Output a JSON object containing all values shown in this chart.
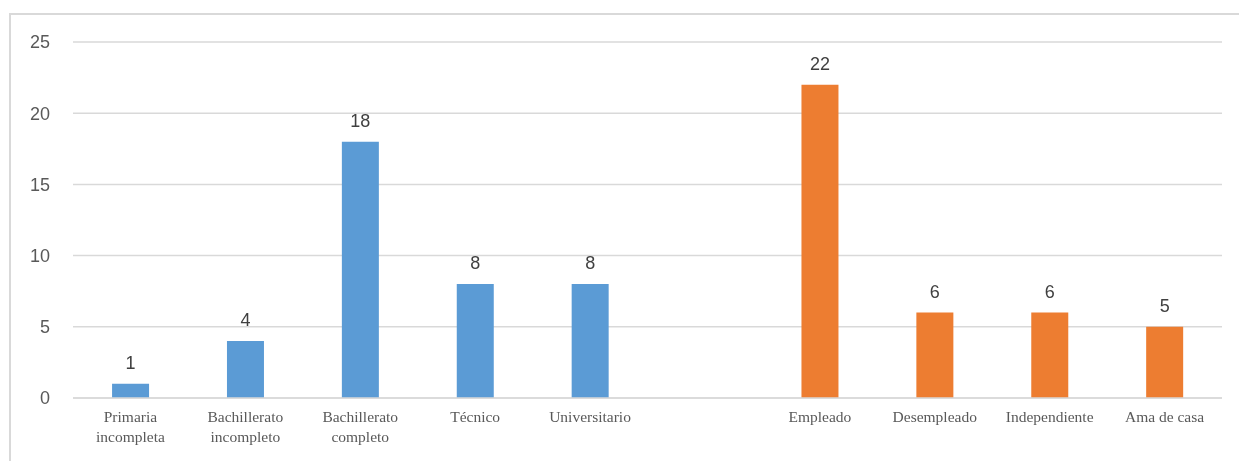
{
  "chart_data": {
    "type": "bar",
    "categories": [
      "Primaria incompleta",
      "Bachillerato incompleto",
      "Bachillerato completo",
      "Técnico",
      "Universitario",
      null,
      "Empleado",
      "Desempleado",
      "Independiente",
      "Ama de casa"
    ],
    "values": [
      1,
      4,
      18,
      8,
      8,
      null,
      22,
      6,
      6,
      5
    ],
    "colors": [
      "#5b9bd5",
      "#5b9bd5",
      "#5b9bd5",
      "#5b9bd5",
      "#5b9bd5",
      null,
      "#ed7d31",
      "#ed7d31",
      "#ed7d31",
      "#ed7d31"
    ],
    "ylim": [
      0,
      25
    ],
    "yticks": [
      0,
      5,
      10,
      15,
      20,
      25
    ],
    "grid": "y",
    "data_labels": true
  }
}
